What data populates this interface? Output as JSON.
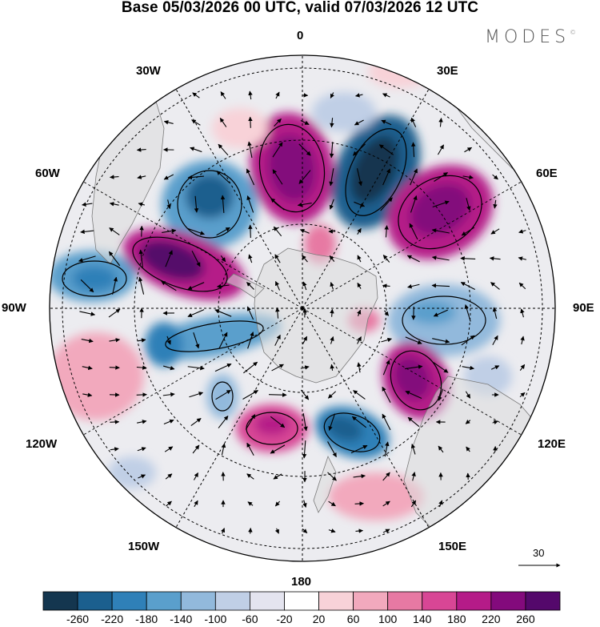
{
  "header": {
    "title": "Base 05/03/2026 00 UTC, valid 07/03/2026 12 UTC",
    "brand": "MODES",
    "brand_mark": "©"
  },
  "map": {
    "projection": "polar stereographic, south pole",
    "longitude_labels": {
      "top": "0",
      "upper_left": "30W",
      "upper_right": "30E",
      "left_upper": "60W",
      "right_upper": "60E",
      "left": "90W",
      "right": "90E",
      "left_lower": "120W",
      "right_lower": "120E",
      "lower_left": "150W",
      "lower_right": "150E",
      "bottom": "180"
    },
    "wind_reference_label": "30"
  },
  "colorbar": {
    "ticks": [
      "-260",
      "-220",
      "-180",
      "-140",
      "-100",
      "-60",
      "-20",
      "20",
      "60",
      "100",
      "140",
      "180",
      "220",
      "260"
    ],
    "colors": [
      "#14364f",
      "#1b5f8e",
      "#2f80b8",
      "#5a9fcc",
      "#92b9dc",
      "#c0cfe6",
      "#e4e4ef",
      "#ffffff",
      "#f8d2d8",
      "#f2a9bd",
      "#e779a3",
      "#d84695",
      "#b51b88",
      "#830a7c",
      "#54086b"
    ]
  }
}
